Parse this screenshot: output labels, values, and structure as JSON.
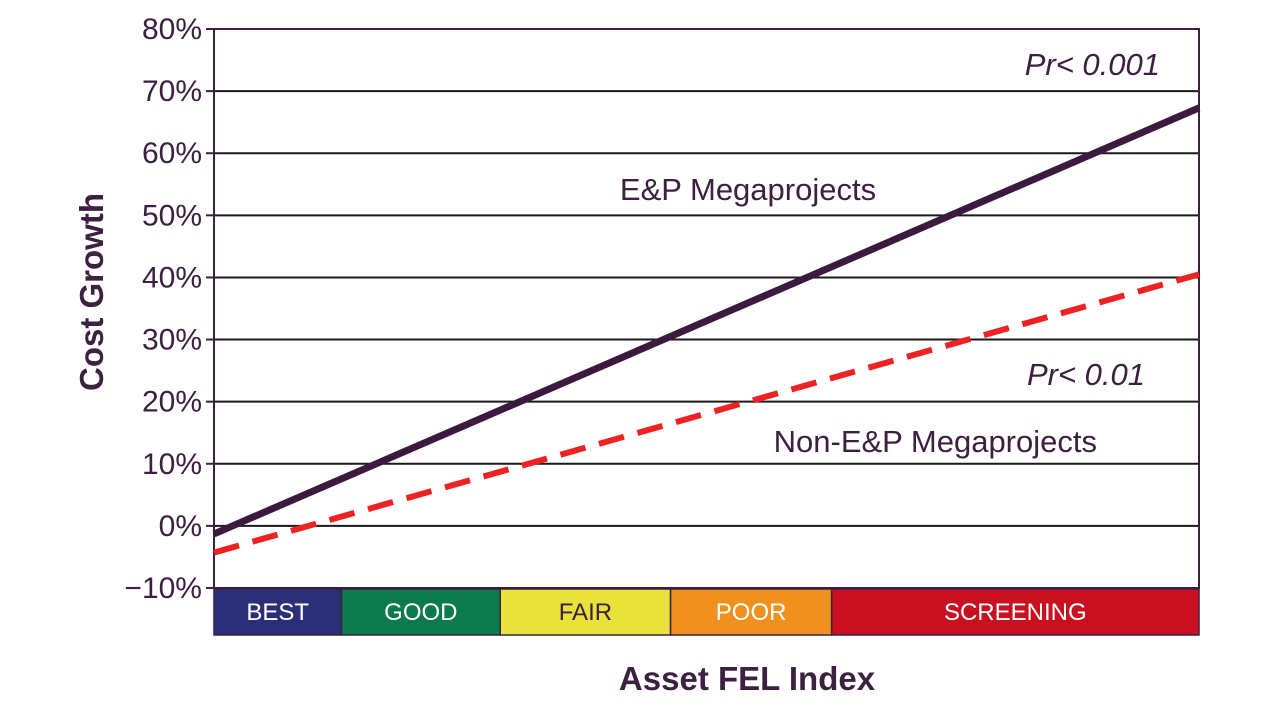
{
  "chart_data": {
    "type": "line",
    "ylabel": "Cost Growth",
    "xlabel": "Asset FEL Index",
    "ylim": [
      -10,
      80
    ],
    "y_ticks": [
      {
        "value": 80,
        "label": "80%"
      },
      {
        "value": 70,
        "label": "70%"
      },
      {
        "value": 60,
        "label": "60%"
      },
      {
        "value": 50,
        "label": "50%"
      },
      {
        "value": 40,
        "label": "40%"
      },
      {
        "value": 30,
        "label": "30%"
      },
      {
        "value": 20,
        "label": "20%"
      },
      {
        "value": 10,
        "label": "10%"
      },
      {
        "value": 0,
        "label": "0%"
      },
      {
        "value": -10,
        "label": "−10%"
      }
    ],
    "grid": true,
    "x_scale": {
      "min": 3.5,
      "max": 12,
      "bands": [
        {
          "label": "BEST",
          "from": 3.5,
          "to": 4.6,
          "color": "#2b2f78",
          "text_color": "#ffffff"
        },
        {
          "label": "GOOD",
          "from": 4.6,
          "to": 5.97,
          "color": "#0b7a4c",
          "text_color": "#ffffff"
        },
        {
          "label": "FAIR",
          "from": 5.97,
          "to": 7.44,
          "color": "#e8e23a",
          "text_color": "#3b2040"
        },
        {
          "label": "POOR",
          "from": 7.44,
          "to": 8.83,
          "color": "#f0901e",
          "text_color": "#ffffff"
        },
        {
          "label": "SCREENING",
          "from": 8.83,
          "to": 12,
          "color": "#c8101e",
          "text_color": "#ffffff"
        }
      ]
    },
    "series": [
      {
        "name": "E&P Megaprojects",
        "significance": "Pr< 0.001",
        "style": "solid",
        "color": "#3b1a3e",
        "x": [
          3.5,
          12
        ],
        "y": [
          -1.3,
          67.3
        ]
      },
      {
        "name": "Non-E&P Megaprojects",
        "significance": "Pr< 0.01",
        "style": "dashed",
        "color": "#ee2222",
        "x": [
          3.5,
          12
        ],
        "y": [
          -4.3,
          40.5
        ]
      }
    ]
  }
}
